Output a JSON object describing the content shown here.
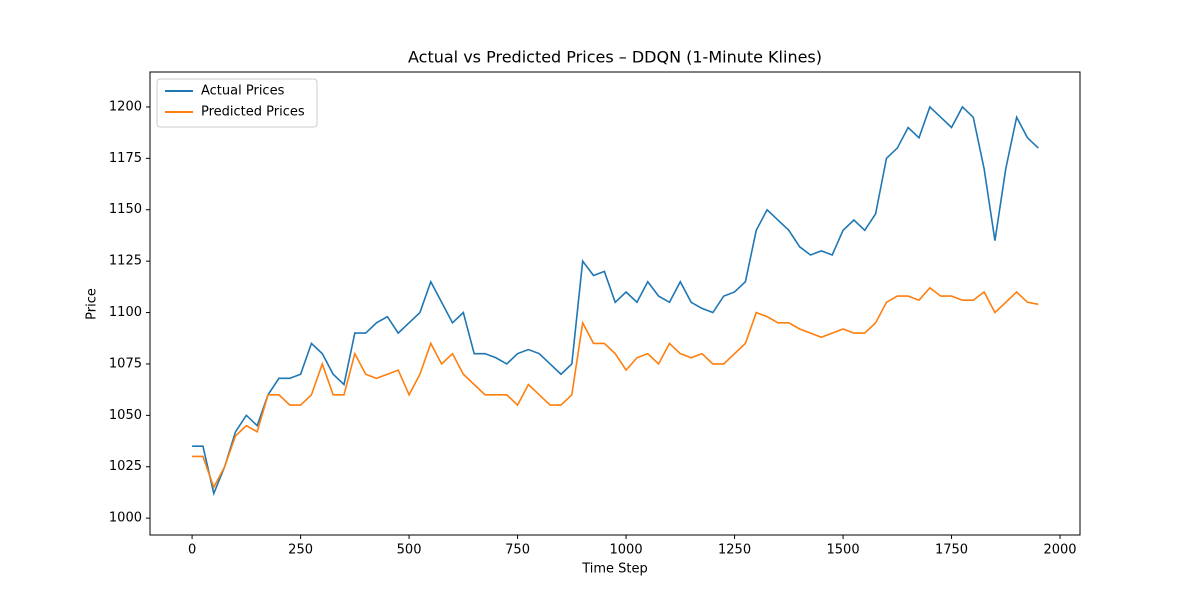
{
  "chart_data": {
    "type": "line",
    "title": "Actual vs Predicted Prices – DDQN (1-Minute Klines)",
    "x_label": "Time Step",
    "y_label": "Price",
    "x": [
      0,
      25,
      50,
      75,
      100,
      125,
      150,
      175,
      200,
      225,
      250,
      275,
      300,
      325,
      350,
      375,
      400,
      425,
      450,
      475,
      500,
      525,
      550,
      575,
      600,
      625,
      650,
      675,
      700,
      725,
      750,
      775,
      800,
      825,
      850,
      875,
      900,
      925,
      950,
      975,
      1000,
      1025,
      1050,
      1075,
      1100,
      1125,
      1150,
      1175,
      1200,
      1225,
      1250,
      1275,
      1300,
      1325,
      1350,
      1375,
      1400,
      1425,
      1450,
      1475,
      1500,
      1525,
      1550,
      1575,
      1600,
      1625,
      1650,
      1675,
      1700,
      1725,
      1750,
      1775,
      1800,
      1825,
      1850,
      1875,
      1900,
      1925,
      1950
    ],
    "series": [
      {
        "name": "Actual Prices",
        "color": "#1f77b4",
        "values": [
          1035,
          1035,
          1012,
          1025,
          1042,
          1050,
          1045,
          1060,
          1068,
          1068,
          1070,
          1085,
          1080,
          1070,
          1065,
          1090,
          1090,
          1095,
          1098,
          1090,
          1095,
          1100,
          1115,
          1105,
          1095,
          1100,
          1080,
          1080,
          1078,
          1075,
          1080,
          1082,
          1080,
          1075,
          1070,
          1075,
          1125,
          1118,
          1120,
          1105,
          1110,
          1105,
          1115,
          1108,
          1105,
          1115,
          1105,
          1102,
          1100,
          1108,
          1110,
          1115,
          1140,
          1150,
          1145,
          1140,
          1132,
          1128,
          1130,
          1128,
          1140,
          1145,
          1140,
          1148,
          1175,
          1180,
          1190,
          1185,
          1200,
          1195,
          1190,
          1200,
          1195,
          1170,
          1135,
          1170,
          1195,
          1185,
          1180
        ]
      },
      {
        "name": "Predicted Prices",
        "color": "#ff7f0e",
        "values": [
          1030,
          1030,
          1015,
          1025,
          1040,
          1045,
          1042,
          1060,
          1060,
          1055,
          1055,
          1060,
          1075,
          1060,
          1060,
          1080,
          1070,
          1068,
          1070,
          1072,
          1060,
          1070,
          1085,
          1075,
          1080,
          1070,
          1065,
          1060,
          1060,
          1060,
          1055,
          1065,
          1060,
          1055,
          1055,
          1060,
          1095,
          1085,
          1085,
          1080,
          1072,
          1078,
          1080,
          1075,
          1085,
          1080,
          1078,
          1080,
          1075,
          1075,
          1080,
          1085,
          1100,
          1098,
          1095,
          1095,
          1092,
          1090,
          1088,
          1090,
          1092,
          1090,
          1090,
          1095,
          1105,
          1108,
          1108,
          1106,
          1112,
          1108,
          1108,
          1106,
          1106,
          1110,
          1100,
          1105,
          1110,
          1105,
          1104
        ]
      }
    ],
    "xlim": [
      -97,
      2046
    ],
    "ylim": [
      991.8,
      1217
    ],
    "xticks": [
      0,
      250,
      500,
      750,
      1000,
      1250,
      1500,
      1750,
      2000
    ],
    "yticks": [
      1000,
      1025,
      1050,
      1075,
      1100,
      1125,
      1150,
      1175,
      1200
    ],
    "legend": "upper left"
  }
}
